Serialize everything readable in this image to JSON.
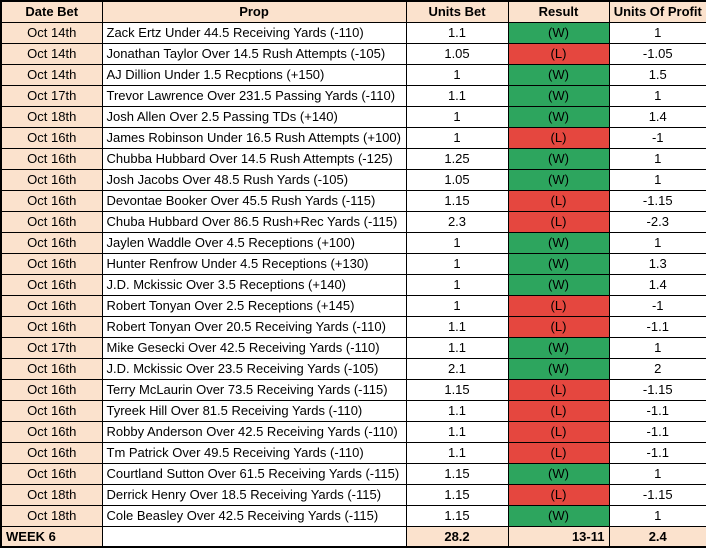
{
  "colors": {
    "header_bg": "#fbe2cd",
    "win_bg": "#2da55e",
    "loss_bg": "#e5473f",
    "border": "#000000"
  },
  "table": {
    "columns": [
      {
        "label": "Date Bet"
      },
      {
        "label": "Prop"
      },
      {
        "label": "Units Bet"
      },
      {
        "label": "Result"
      },
      {
        "label": "Units Of Profit"
      }
    ],
    "rows": [
      {
        "date": "Oct 14th",
        "prop": "Zack Ertz Under 44.5 Receiving Yards (-110)",
        "units_bet": "1.1",
        "result": "(W)",
        "outcome": "win",
        "profit": "1"
      },
      {
        "date": "Oct 14th",
        "prop": "Jonathan Taylor Over 14.5 Rush Attempts (-105)",
        "units_bet": "1.05",
        "result": "(L)",
        "outcome": "loss",
        "profit": "-1.05"
      },
      {
        "date": "Oct 14th",
        "prop": "AJ Dillion Under 1.5 Recptions (+150)",
        "units_bet": "1",
        "result": "(W)",
        "outcome": "win",
        "profit": "1.5"
      },
      {
        "date": "Oct 17th",
        "prop": "Trevor Lawrence Over 231.5 Passing Yards (-110)",
        "units_bet": "1.1",
        "result": "(W)",
        "outcome": "win",
        "profit": "1"
      },
      {
        "date": "Oct 18th",
        "prop": "Josh Allen Over 2.5 Passing TDs (+140)",
        "units_bet": "1",
        "result": "(W)",
        "outcome": "win",
        "profit": "1.4"
      },
      {
        "date": "Oct 16th",
        "prop": "James Robinson Under 16.5 Rush Attempts (+100)",
        "units_bet": "1",
        "result": "(L)",
        "outcome": "loss",
        "profit": "-1"
      },
      {
        "date": "Oct 16th",
        "prop": "Chubba Hubbard Over 14.5 Rush Attempts (-125)",
        "units_bet": "1.25",
        "result": "(W)",
        "outcome": "win",
        "profit": "1"
      },
      {
        "date": "Oct 16th",
        "prop": "Josh Jacobs Over 48.5 Rush Yards (-105)",
        "units_bet": "1.05",
        "result": "(W)",
        "outcome": "win",
        "profit": "1"
      },
      {
        "date": "Oct 16th",
        "prop": "Devontae Booker Over 45.5 Rush Yards (-115)",
        "units_bet": "1.15",
        "result": "(L)",
        "outcome": "loss",
        "profit": "-1.15"
      },
      {
        "date": "Oct 16th",
        "prop": "Chuba Hubbard Over 86.5 Rush+Rec Yards (-115)",
        "units_bet": "2.3",
        "result": "(L)",
        "outcome": "loss",
        "profit": "-2.3"
      },
      {
        "date": "Oct 16th",
        "prop": "Jaylen Waddle Over 4.5 Receptions (+100)",
        "units_bet": "1",
        "result": "(W)",
        "outcome": "win",
        "profit": "1"
      },
      {
        "date": "Oct 16th",
        "prop": "Hunter Renfrow Under 4.5 Receptions (+130)",
        "units_bet": "1",
        "result": "(W)",
        "outcome": "win",
        "profit": "1.3"
      },
      {
        "date": "Oct 16th",
        "prop": "J.D. Mckissic Over 3.5 Receptions (+140)",
        "units_bet": "1",
        "result": "(W)",
        "outcome": "win",
        "profit": "1.4"
      },
      {
        "date": "Oct 16th",
        "prop": "Robert Tonyan Over 2.5 Receptions (+145)",
        "units_bet": "1",
        "result": "(L)",
        "outcome": "loss",
        "profit": "-1"
      },
      {
        "date": "Oct 16th",
        "prop": "Robert Tonyan Over 20.5 Receiving Yards (-110)",
        "units_bet": "1.1",
        "result": "(L)",
        "outcome": "loss",
        "profit": "-1.1"
      },
      {
        "date": "Oct 17th",
        "prop": "Mike Gesecki Over 42.5 Receiving Yards (-110)",
        "units_bet": "1.1",
        "result": "(W)",
        "outcome": "win",
        "profit": "1"
      },
      {
        "date": "Oct 16th",
        "prop": "J.D. Mckissic Over 23.5 Receiving Yards (-105)",
        "units_bet": "2.1",
        "result": "(W)",
        "outcome": "win",
        "profit": "2"
      },
      {
        "date": "Oct 16th",
        "prop": "Terry McLaurin Over 73.5 Receiving Yards (-115)",
        "units_bet": "1.15",
        "result": "(L)",
        "outcome": "loss",
        "profit": "-1.15"
      },
      {
        "date": "Oct 16th",
        "prop": "Tyreek Hill Over 81.5 Receiving Yards (-110)",
        "units_bet": "1.1",
        "result": "(L)",
        "outcome": "loss",
        "profit": "-1.1"
      },
      {
        "date": "Oct 16th",
        "prop": "Robby Anderson Over 42.5 Receiving Yards (-110)",
        "units_bet": "1.1",
        "result": "(L)",
        "outcome": "loss",
        "profit": "-1.1"
      },
      {
        "date": "Oct 16th",
        "prop": "Tm Patrick Over 49.5 Receiving Yards (-110)",
        "units_bet": "1.1",
        "result": "(L)",
        "outcome": "loss",
        "profit": "-1.1"
      },
      {
        "date": "Oct 16th",
        "prop": "Courtland Sutton Over 61.5 Receiving Yards (-115)",
        "units_bet": "1.15",
        "result": "(W)",
        "outcome": "win",
        "profit": "1"
      },
      {
        "date": "Oct 18th",
        "prop": "Derrick Henry Over 18.5 Receiving Yards (-115)",
        "units_bet": "1.15",
        "result": "(L)",
        "outcome": "loss",
        "profit": "-1.15"
      },
      {
        "date": "Oct 18th",
        "prop": "Cole Beasley Over 42.5 Receiving Yards (-115)",
        "units_bet": "1.15",
        "result": "(W)",
        "outcome": "win",
        "profit": "1"
      }
    ],
    "footer": {
      "week_label": "WEEK 6",
      "total_units_bet": "28.2",
      "record": "13-11",
      "total_profit": "2.4"
    }
  }
}
